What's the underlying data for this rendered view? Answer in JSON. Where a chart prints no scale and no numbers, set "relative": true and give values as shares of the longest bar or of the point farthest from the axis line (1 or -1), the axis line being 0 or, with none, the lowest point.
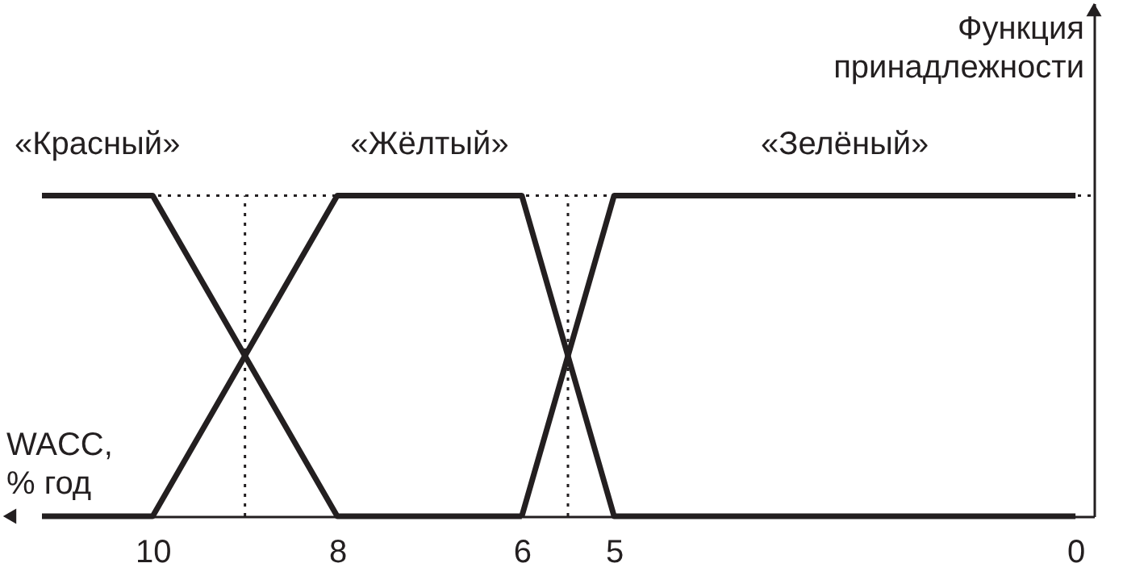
{
  "chart_data": {
    "type": "line",
    "relative": true,
    "xlabel": "WACC, % год",
    "ylabel": "Функция принадлежности",
    "xlim": [
      11.2,
      -0.2
    ],
    "xticks": [
      10,
      8,
      6,
      5,
      0
    ],
    "series": [
      {
        "name": "«Красный»",
        "color": "#231f20",
        "x": [
          11.2,
          10,
          8,
          6
        ],
        "values": [
          1,
          1,
          0,
          0
        ]
      },
      {
        "name": "«Жёлтый»",
        "color": "#231f20",
        "x": [
          11.2,
          10,
          8,
          6,
          5,
          0
        ],
        "values": [
          0,
          0,
          1,
          1,
          0,
          0
        ]
      },
      {
        "name": "«Зелёный»",
        "color": "#231f20",
        "x": [
          6,
          5,
          0
        ],
        "values": [
          0,
          1,
          1
        ]
      }
    ],
    "ref_lines": [
      {
        "axis": "y",
        "value": 1,
        "line_style": "dotted",
        "color": "#231f20"
      },
      {
        "axis": "x",
        "value": 9,
        "line_style": "dotted",
        "color": "#231f20"
      },
      {
        "axis": "x",
        "value": 5.5,
        "line_style": "dotted",
        "color": "#231f20"
      }
    ]
  }
}
